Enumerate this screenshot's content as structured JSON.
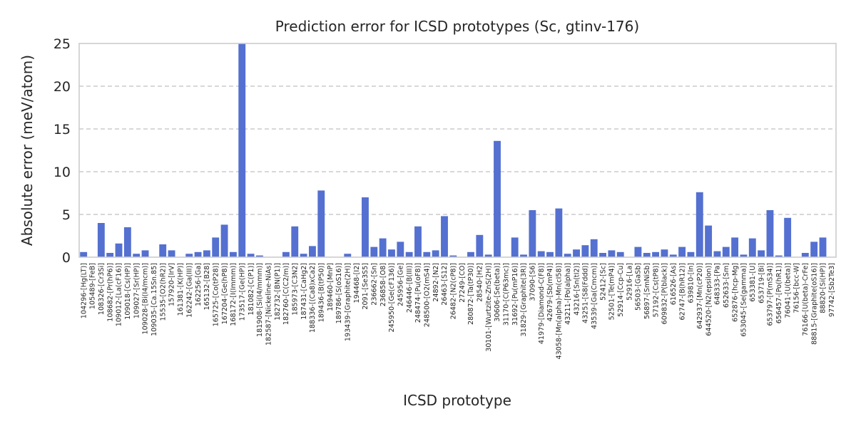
{
  "chart_data": {
    "type": "bar",
    "title": "Prediction error for ICSD prototypes (Sc, gtinv-176)",
    "xlabel": "ICSD prototype",
    "ylabel": "Absolute error (meV/atom)",
    "ylim": [
      0,
      25
    ],
    "yticks": [
      "0",
      "5",
      "10",
      "15",
      "20",
      "25"
    ],
    "grid": "horizontal dashed",
    "bar_color": "#5470d0",
    "categories": [
      "104296-[Hg(LT)]",
      "105489-[FeB]",
      "108326-[Cr3Si]",
      "108682-[Pr(hP6)]",
      "109012-[La(cF16)]",
      "109018-[Cs(HP)]",
      "109027-[Sr(HP)]",
      "109028-[Bi(I4/mcm)]",
      "109035-[Ca.15Sn.85]",
      "15535-[O2(hR2)]",
      "157920-[IrV]",
      "161381-[K(HP)]",
      "162242-[Ga(III)]",
      "162256-[Ga]",
      "165132-[B28]",
      "165725-[Co(tP28)]",
      "167204-[Ge(hP8)]",
      "168172-[I(Immm)]",
      "173517-[Ge(HP)]",
      "181082-[C(P1)]",
      "181908-[Si(I4/mmm)]",
      "182587-[Nickeline-NiAs]",
      "182732-[BN(P1)]",
      "182760-[C(C2/m)]",
      "185973-[C3N2]",
      "187431-[CaHg2]",
      "188336-[(Ca8)xCa2]",
      "189436-[B(tP50)]",
      "189460-[MnP]",
      "189786-[S(oS16)]",
      "193439-[Graphite(2H)]",
      "194468-[I2]",
      "2091-[Se3S5]",
      "236662-[Sn]",
      "236858-[O8]",
      "245950-[Ge(cF136)]",
      "245956-[Ge]",
      "246446-[B(III)]",
      "248474-[Pu(oF8)]",
      "248500-[O2(mS4)]",
      "24892-[N2]",
      "26463-[S12]",
      "26482-[N2(cP8)]",
      "27249-[CO]",
      "280872-[Ta(tP30)]",
      "28540-[H2]",
      "30101-[Wurtzite-ZnS(2H)]",
      "30606-[Se(beta)]",
      "31170-[C(P63mc)]",
      "31692-[Pu(mP16)]",
      "31829-[Graphite(3R)]",
      "37090-[S6]",
      "41979-[Diamond-C(F8)]",
      "42679-[Sb(mP4)]",
      "43058-[Mn(alpha)-Mn(cI58)]",
      "43211-[Po(alpha)]",
      "43216-[Sn(tI2)]",
      "43251-[S8(Fddd)]",
      "43539-[Ga(Cmcm)]",
      "52412-[Sc]",
      "52501-[Te(mP4)]",
      "52914-[Ccp-Cu]",
      "52916-[La]",
      "56503-[GaSb]",
      "56897-[SmNiSb]",
      "57192-[Cs(tP8)]",
      "609832-[P(black)]",
      "616526-[As]",
      "62747-[B(hR12)]",
      "639810-[In]",
      "642937-[Mn(cP20)]",
      "644520-[N2(epsilon)]",
      "648333-[Pa]",
      "652633-[Sm]",
      "652876-[hcp-Mg]",
      "653045-[Se(gamma)]",
      "653381-[U]",
      "653719-[Bi]",
      "653797-[P(mS34)]",
      "656457-[Po(hR1)]",
      "76041-[U(beta)]",
      "76156-[bcc-W]",
      "76166-[U(beta)-CrFe]",
      "88815-[Graphite(oS16)]",
      "88820-[Si(HP)]",
      "97742-[Sb2Te3]"
    ],
    "values": [
      0.6,
      0.0,
      4.0,
      0.5,
      1.6,
      3.5,
      0.4,
      0.8,
      0.0,
      1.5,
      0.8,
      0.0,
      0.4,
      0.6,
      0.8,
      2.3,
      3.8,
      0.6,
      25.0,
      0.4,
      0.2,
      0.0,
      0.0,
      0.6,
      3.6,
      0.4,
      1.3,
      7.8,
      0.0,
      0.0,
      0.4,
      0.0,
      7.0,
      1.2,
      2.2,
      0.9,
      1.8,
      0.6,
      3.6,
      0.6,
      0.8,
      4.8,
      0.2,
      0.0,
      0.6,
      2.6,
      0.3,
      13.6,
      0.0,
      2.3,
      0.3,
      5.5,
      0.7,
      0.6,
      5.7,
      0.4,
      0.9,
      1.4,
      2.1,
      0.5,
      0.8,
      0.6,
      0.0,
      1.2,
      0.5,
      0.6,
      0.9,
      0.3,
      1.2,
      0.6,
      7.6,
      3.7,
      0.7,
      1.2,
      2.3,
      0.3,
      2.2,
      0.8,
      5.5,
      0.2,
      4.6,
      0.0,
      0.5,
      1.8,
      2.3,
      0.0
    ]
  }
}
